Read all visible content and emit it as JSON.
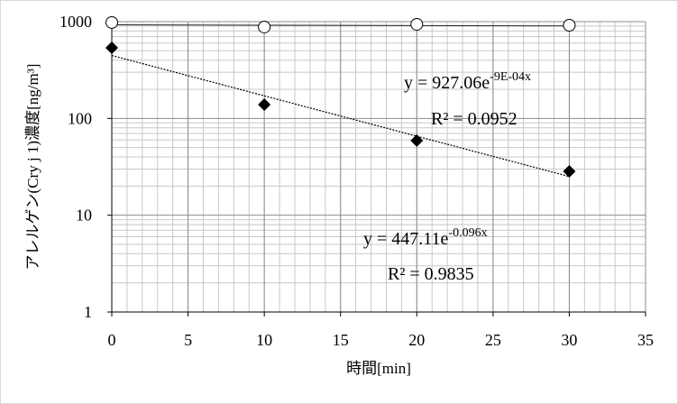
{
  "chart_data": {
    "type": "scatter",
    "x_label": "時間[min]",
    "y_label": "アレルゲン(Cry j 1)濃度[ng/m³]",
    "xlim": [
      0,
      35
    ],
    "xticks": [
      0,
      5,
      10,
      15,
      20,
      25,
      30,
      35
    ],
    "ylim": [
      1,
      1000
    ],
    "yticks": [
      1,
      10,
      100,
      1000
    ],
    "log_y": true,
    "grid": true,
    "minor_grid": true,
    "series": [
      {
        "marker": "circle",
        "color": "#000000",
        "x": [
          0,
          10,
          20,
          30
        ],
        "values": [
          980,
          880,
          938,
          918
        ],
        "trend": {
          "a": 927.06,
          "b": -0.0009,
          "style": "solid",
          "equation": "y = 927.06e",
          "exponent": "-9E-04x",
          "r2": "R² = 0.0952"
        }
      },
      {
        "marker": "diamond",
        "color": "#000000",
        "x": [
          0,
          10,
          20,
          30
        ],
        "values": [
          537,
          139,
          59,
          28.4
        ],
        "trend": {
          "a": 447.11,
          "b": -0.096,
          "style": "dotted",
          "equation": "y = 447.11e",
          "exponent": "-0.096x",
          "r2": "R² = 0.9835"
        }
      }
    ]
  }
}
